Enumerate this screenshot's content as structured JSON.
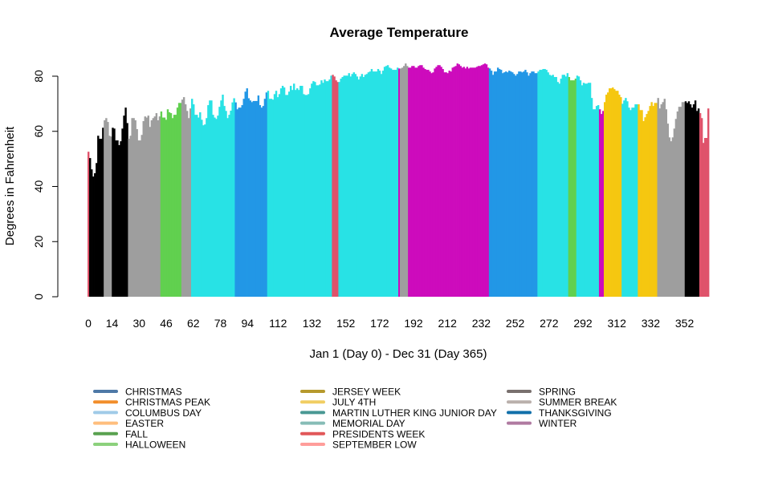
{
  "chart_data": {
    "type": "bar",
    "title": "Average Temperature",
    "xlabel": "Jan 1 (Day 0) - Dec 31 (Day 365)",
    "ylabel": "Degrees in Fahrenheit",
    "ylim": [
      0,
      80
    ],
    "xlim": [
      0,
      365
    ],
    "yticks": [
      "0",
      "20",
      "40",
      "60",
      "80"
    ],
    "xticks": [
      "0",
      "14",
      "30",
      "46",
      "62",
      "78",
      "94",
      "112",
      "132",
      "152",
      "172",
      "192",
      "212",
      "232",
      "252",
      "272",
      "292",
      "312",
      "332",
      "352"
    ],
    "grid": false,
    "legend_placement": "bottom",
    "runs": [
      {
        "color": "#DF536B",
        "values": [
          52.6
        ]
      },
      {
        "color": "#000000",
        "values": [
          50.3,
          46.2,
          43.6,
          44.8,
          48.5,
          58.4,
          57.3,
          57.3,
          61.3
        ]
      },
      {
        "color": "#9E9E9E",
        "values": [
          64,
          64.8,
          63.4,
          58.4,
          58.1
        ]
      },
      {
        "color": "#000000",
        "values": [
          61.3,
          61,
          56.7,
          56.7,
          55,
          56.4,
          61,
          65.7,
          68.6,
          63
        ]
      },
      {
        "color": "#9E9E9E",
        "values": [
          57.3,
          58.4,
          64.8,
          64.8,
          64,
          60.8,
          56.7,
          56.7,
          58.7,
          63.7,
          65.4,
          65,
          65.7,
          61.6,
          64,
          64.8,
          65.4,
          66.6,
          64,
          65.4
        ]
      },
      {
        "color": "#61D04F",
        "values": [
          67.2,
          65,
          65,
          64.2,
          68,
          66.9,
          66.6,
          64.8,
          66,
          66,
          68.6,
          70.3,
          70.3
        ]
      },
      {
        "color": "#9E9E9E",
        "values": [
          71.5,
          72.4,
          69.8,
          67.4,
          64.8,
          68.3
        ]
      },
      {
        "color": "#28E2E5",
        "values": [
          71.8,
          69.8,
          66,
          66,
          65,
          66.9,
          64.2,
          62.2,
          62.5,
          64.8,
          69.5,
          71.2,
          71.2,
          66,
          65,
          64.5,
          65.7,
          68.9,
          71.2,
          73.3,
          69.2,
          67.4,
          64.8,
          66,
          67.5,
          70.5,
          72
        ]
      },
      {
        "color": "#2297E6",
        "values": [
          70.5,
          68,
          68.6,
          68.6,
          69.5,
          71.8,
          74.4,
          75.6,
          72,
          71.2,
          70.6,
          71,
          71,
          71,
          73,
          69.5,
          68.6,
          69.2,
          71.8,
          74.1
        ]
      },
      {
        "color": "#28E2E5",
        "values": [
          74.7,
          71.8,
          71.8,
          71.5,
          73.5,
          74.7,
          72.4,
          73.5,
          75.6,
          76.5,
          75.9,
          73.2,
          73.2,
          74.4,
          76.5,
          75,
          77.3,
          75,
          75.6,
          75,
          76.5,
          76.5,
          73.5,
          73.2,
          73.2,
          73.5,
          75.6,
          77.3,
          78.2,
          77.9,
          76.7,
          76.7,
          77,
          78.5,
          77.6,
          78.8,
          78.2,
          78.2,
          78.8,
          80.2
        ]
      },
      {
        "color": "#DF536B",
        "values": [
          80.5,
          79.9,
          78.5,
          77.9
        ]
      },
      {
        "color": "#28E2E5",
        "values": [
          77.9,
          79.1,
          79.7,
          80.2,
          80.2,
          80.2,
          81.1,
          79.9,
          80.8,
          81.4,
          80.8,
          79.9,
          78.8,
          79.9,
          80.8,
          79.7,
          80.5,
          80.8,
          81.4,
          81.7,
          82.6,
          81.7,
          81.7,
          81.7,
          82.6,
          82,
          80.8,
          82,
          83.4,
          83.7,
          84,
          83.1,
          82.8,
          82.3,
          82.3,
          82.3,
          83.1
        ]
      },
      {
        "color": "#CD0BBC",
        "values": [
          82.8
        ]
      },
      {
        "color": "#9E9E9E",
        "values": [
          82.8,
          83.1,
          83.7,
          84.6,
          83.7
        ]
      },
      {
        "color": "#CD0BBC",
        "values": [
          83.1,
          83.1,
          83.7,
          83.7,
          83.1,
          83.1,
          83.7,
          84,
          84,
          83.1,
          82.6,
          82.3,
          82.3,
          81.7,
          81.1,
          81.4,
          82.8,
          83.4,
          84,
          84,
          83.4,
          82.6,
          81.4,
          81.4,
          81.1,
          82,
          81.7,
          83.1,
          83.4,
          83.7,
          84.6,
          84.3,
          83.7,
          83.1,
          83.4,
          82.8,
          83.4,
          82.8,
          83.1,
          83.1,
          83.1,
          83.1,
          83.4,
          83.7,
          83.7,
          84,
          84.3,
          84.6,
          84.3,
          83.1
        ]
      },
      {
        "color": "#2297E6",
        "values": [
          82.8,
          82,
          80.5,
          81.7,
          81.7,
          83.1,
          82.6,
          82.3,
          81.1,
          81.4,
          81.7,
          81.4,
          82,
          81.7,
          81.4,
          80.8,
          80.2,
          80.8,
          81.7,
          81.7,
          81.4,
          81.7,
          82.3,
          81.4,
          80.2,
          81.1,
          81.7,
          81.7,
          81.1,
          81.1
        ]
      },
      {
        "color": "#28E2E5",
        "values": [
          81.7,
          82.3,
          82.3,
          82.6,
          82.6,
          82.3,
          81.4,
          80.5,
          80.2,
          80.5,
          79.7,
          79.7,
          77.9,
          77.3,
          79.1,
          80.5,
          80.5,
          79.9,
          81.1
        ]
      },
      {
        "color": "#61D04F",
        "values": [
          79.7,
          78.5,
          78.5,
          78.5,
          79.1
        ]
      },
      {
        "color": "#28E2E5",
        "values": [
          80.2,
          79.9,
          78.5,
          76.7,
          77.6,
          77.3,
          77.3,
          77.6,
          77.6,
          72.1,
          68,
          68,
          69.2,
          69.5
        ]
      },
      {
        "color": "#CD0BBC",
        "values": [
          68,
          66.3,
          67.4
        ]
      },
      {
        "color": "#F5C710",
        "values": [
          70.6,
          73.3,
          74.1,
          75.6,
          75.6,
          75.9,
          75.3,
          74.7,
          74.7,
          73.3,
          72.4
        ]
      },
      {
        "color": "#28E2E5",
        "values": [
          70,
          71.2,
          72.1,
          70.9,
          68.6,
          67.7,
          68.6,
          68.6,
          69.8,
          69.8
        ]
      },
      {
        "color": "#F5C710",
        "values": [
          69.8,
          67.7,
          67.7,
          63.7,
          65.1,
          66.3,
          67.4,
          69.2,
          70.6,
          69.2,
          70.3,
          70.3
        ]
      },
      {
        "color": "#9E9E9E",
        "values": [
          72.1,
          68.3,
          69.8,
          70.6,
          71.8,
          68,
          62.8,
          57.8,
          56.4,
          57.8,
          61,
          64.5,
          67.2,
          68.9,
          68.9,
          70.6,
          70.6
        ]
      },
      {
        "color": "#000000",
        "values": [
          70.9,
          70.3,
          70.9,
          69.8,
          68.6,
          69.8,
          71.2,
          67.4,
          68.3
        ]
      },
      {
        "color": "#DF536B",
        "values": [
          66.6,
          64.8,
          55.8,
          57.6,
          57.6,
          68.3
        ]
      }
    ],
    "legend": [
      {
        "label": "CHRISTMAS",
        "color": "#4E79A7"
      },
      {
        "label": "CHRISTMAS PEAK",
        "color": "#F28E2B"
      },
      {
        "label": "COLUMBUS DAY",
        "color": "#A0CBE8"
      },
      {
        "label": "EASTER",
        "color": "#FFBE7D"
      },
      {
        "label": "FALL",
        "color": "#59A14F"
      },
      {
        "label": "HALLOWEEN",
        "color": "#8CD17D"
      },
      {
        "label": "JERSEY WEEK",
        "color": "#B6992D"
      },
      {
        "label": "JULY 4TH",
        "color": "#F1CE63"
      },
      {
        "label": "MARTIN LUTHER KING JUNIOR DAY",
        "color": "#499894"
      },
      {
        "label": "MEMORIAL DAY",
        "color": "#86BCB6"
      },
      {
        "label": "PRESIDENTS WEEK",
        "color": "#E15759"
      },
      {
        "label": "SEPTEMBER LOW",
        "color": "#FF9D9A"
      },
      {
        "label": "SPRING",
        "color": "#79706E"
      },
      {
        "label": "SUMMER BREAK",
        "color": "#BAB0AC"
      },
      {
        "label": "THANKSGIVING",
        "color": "#1170AA"
      },
      {
        "label": "WINTER",
        "color": "#B07AA1"
      }
    ]
  }
}
